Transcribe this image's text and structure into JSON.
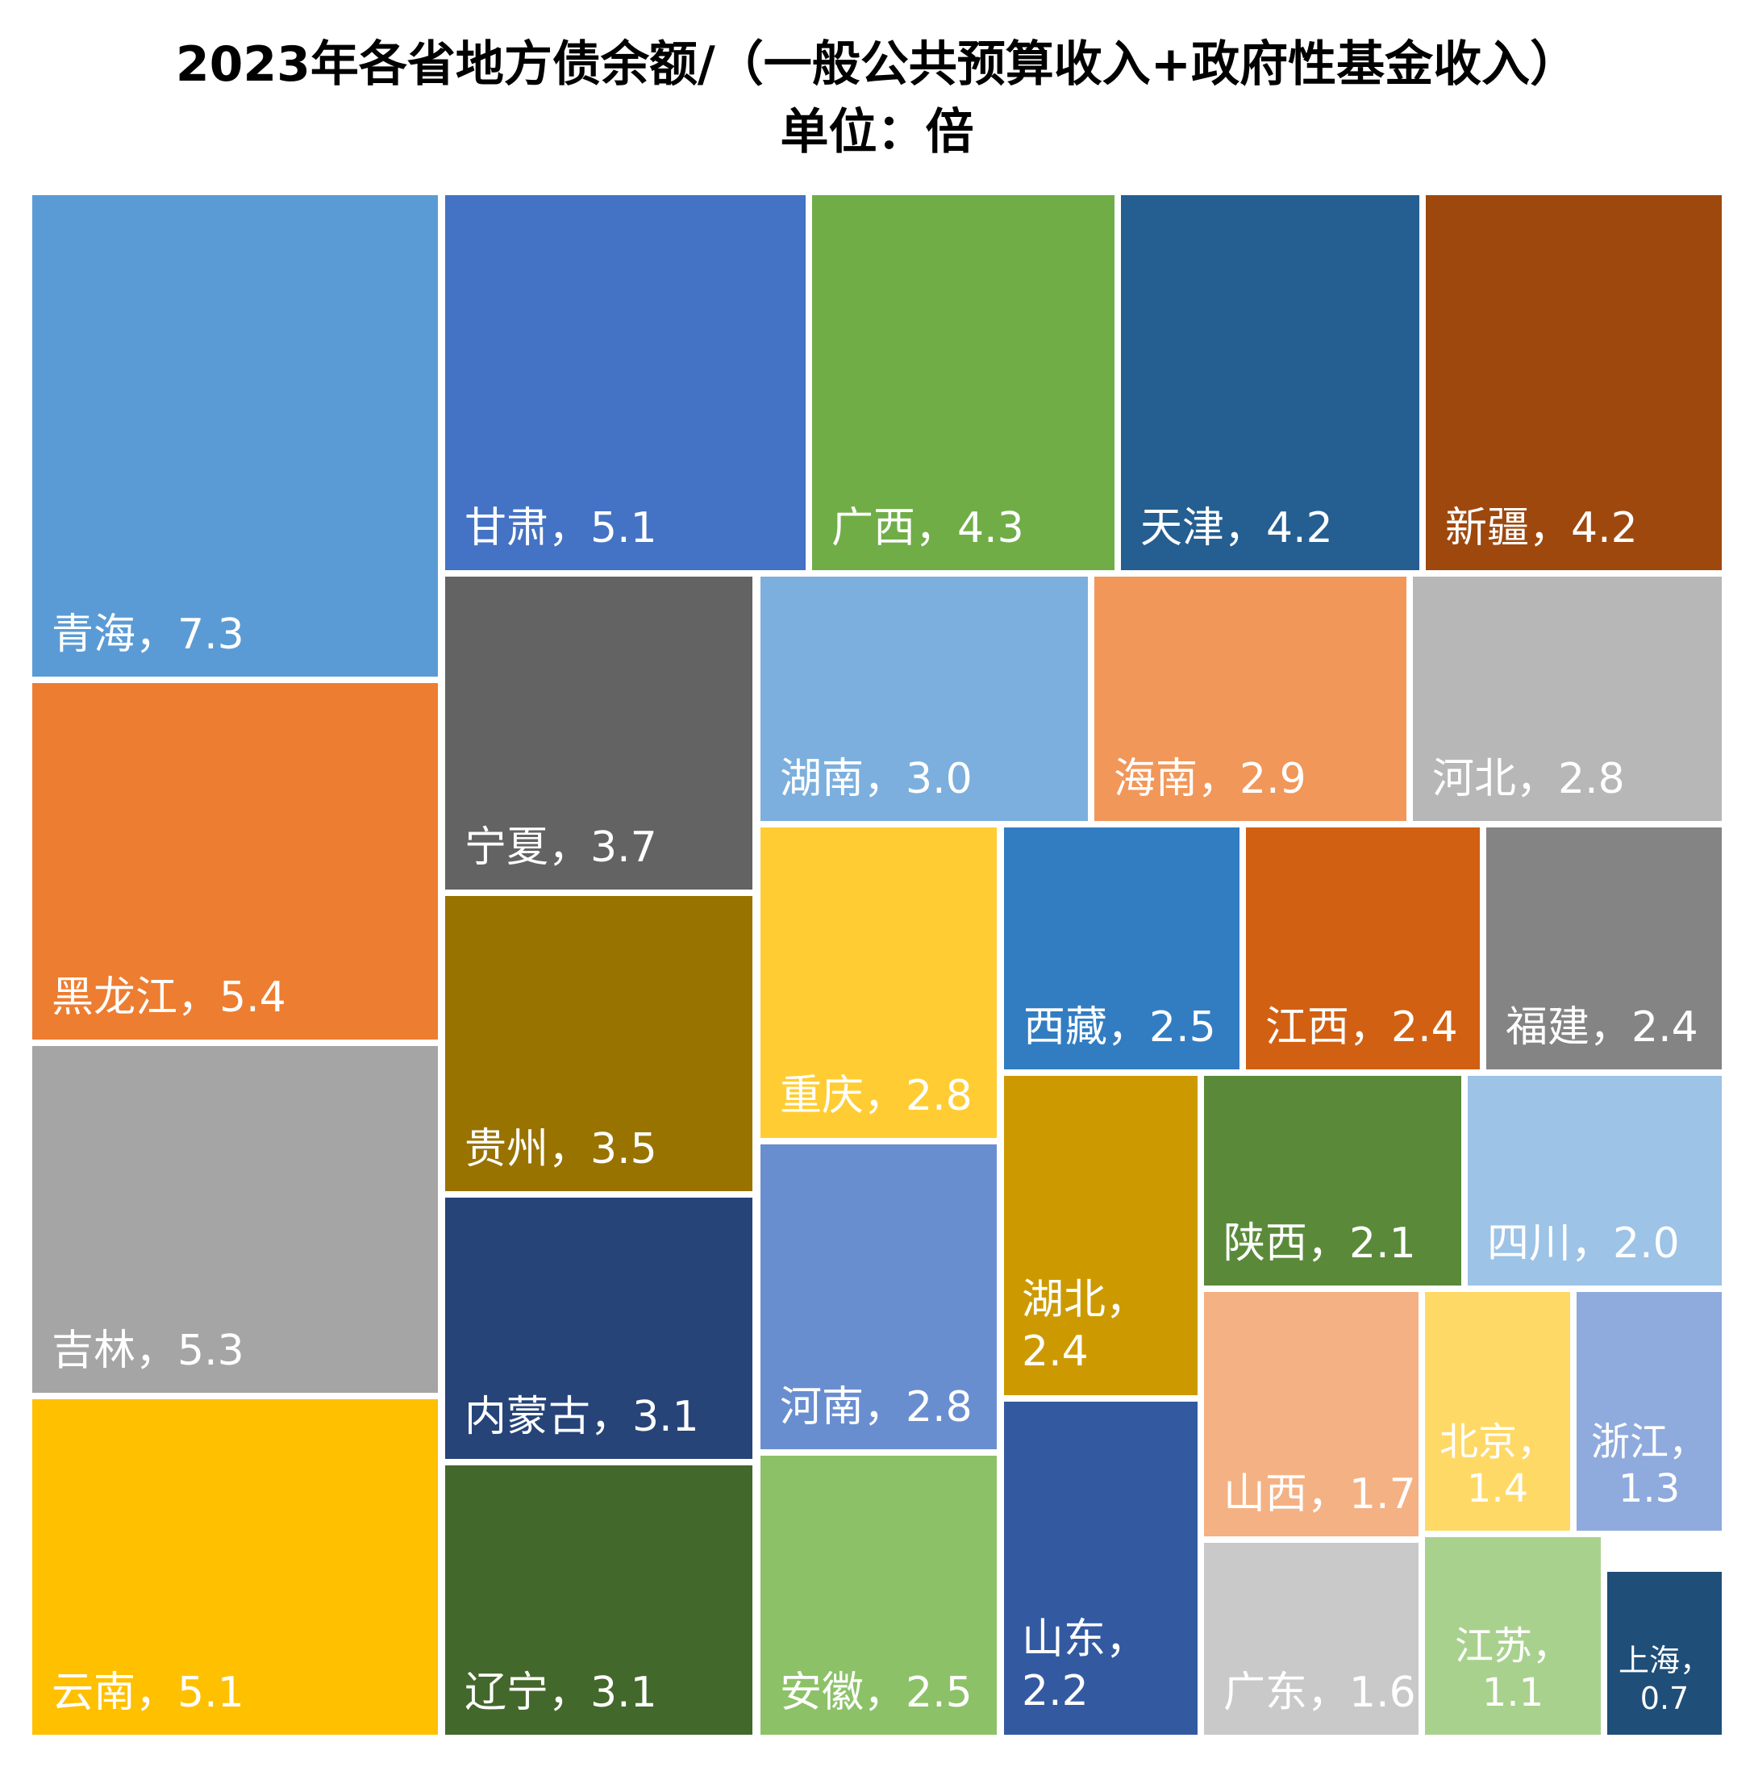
{
  "chart_data": {
    "type": "treemap",
    "title": "2023年各省地方债余额/（一般公共预算收入+政府性基金收入）",
    "subtitle": "单位：倍",
    "items": [
      {
        "name": "青海",
        "value": 7.3,
        "label": "青海，7.3",
        "color": "#5B9BD5"
      },
      {
        "name": "黑龙江",
        "value": 5.4,
        "label": "黑龙江，5.4",
        "color": "#ED7D31"
      },
      {
        "name": "吉林",
        "value": 5.3,
        "label": "吉林，5.3",
        "color": "#A5A5A5"
      },
      {
        "name": "云南",
        "value": 5.1,
        "label": "云南，5.1",
        "color": "#FFC000"
      },
      {
        "name": "甘肃",
        "value": 5.1,
        "label": "甘肃，5.1",
        "color": "#4472C4"
      },
      {
        "name": "广西",
        "value": 4.3,
        "label": "广西，4.3",
        "color": "#70AD47"
      },
      {
        "name": "天津",
        "value": 4.2,
        "label": "天津，4.2",
        "color": "#255E91"
      },
      {
        "name": "新疆",
        "value": 4.2,
        "label": "新疆，4.2",
        "color": "#9E480E"
      },
      {
        "name": "宁夏",
        "value": 3.7,
        "label": "宁夏，3.7",
        "color": "#636363"
      },
      {
        "name": "贵州",
        "value": 3.5,
        "label": "贵州，3.5",
        "color": "#997300"
      },
      {
        "name": "内蒙古",
        "value": 3.1,
        "label": "内蒙古，3.1",
        "color": "#264478"
      },
      {
        "name": "辽宁",
        "value": 3.1,
        "label": "辽宁，3.1",
        "color": "#43682B"
      },
      {
        "name": "湖南",
        "value": 3.0,
        "label": "湖南，3.0",
        "color": "#7CAFDD"
      },
      {
        "name": "海南",
        "value": 2.9,
        "label": "海南，2.9",
        "color": "#F1975A"
      },
      {
        "name": "河北",
        "value": 2.8,
        "label": "河北，2.8",
        "color": "#B7B7B7"
      },
      {
        "name": "重庆",
        "value": 2.8,
        "label": "重庆，2.8",
        "color": "#FFCD33"
      },
      {
        "name": "河南",
        "value": 2.8,
        "label": "河南，2.8",
        "color": "#698ED0"
      },
      {
        "name": "安徽",
        "value": 2.5,
        "label": "安徽，2.5",
        "color": "#8CC168"
      },
      {
        "name": "西藏",
        "value": 2.5,
        "label": "西藏，2.5",
        "color": "#327DC2"
      },
      {
        "name": "江西",
        "value": 2.4,
        "label": "江西，2.4",
        "color": "#D26012"
      },
      {
        "name": "福建",
        "value": 2.4,
        "label": "福建，2.4",
        "color": "#848484"
      },
      {
        "name": "湖北",
        "value": 2.4,
        "label": "湖北，2.4",
        "color": "#CC9A00"
      },
      {
        "name": "山东",
        "value": 2.2,
        "label": "山东，2.2",
        "color": "#335AA1"
      },
      {
        "name": "陕西",
        "value": 2.1,
        "label": "陕西，2.1",
        "color": "#5A8A39"
      },
      {
        "name": "四川",
        "value": 2.0,
        "label": "四川，2.0",
        "color": "#9DC3E6"
      },
      {
        "name": "山西",
        "value": 1.7,
        "label": "山西，1.7",
        "color": "#F4B183"
      },
      {
        "name": "广东",
        "value": 1.6,
        "label": "广东，1.6",
        "color": "#C9C9C9"
      },
      {
        "name": "北京",
        "value": 1.4,
        "label": "北京，1.4",
        "color": "#FFD966"
      },
      {
        "name": "浙江",
        "value": 1.3,
        "label": "浙江，1.3",
        "color": "#8FAADC"
      },
      {
        "name": "江苏",
        "value": 1.1,
        "label": "江苏，1.1",
        "color": "#A9D18E"
      },
      {
        "name": "上海",
        "value": 0.7,
        "label": "上海，0.7",
        "color": "#1F4E79"
      }
    ]
  }
}
